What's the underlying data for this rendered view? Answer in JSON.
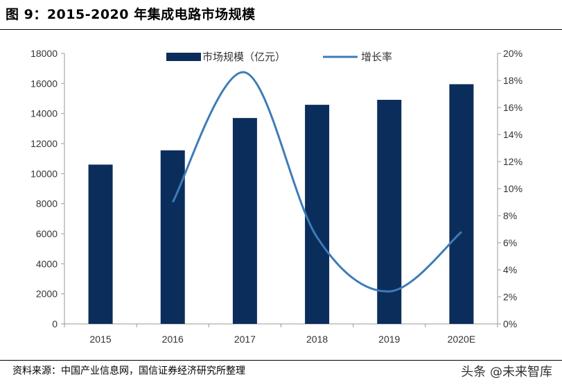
{
  "header": {
    "title": "图 9：2015-2020 年集成电路市场规模"
  },
  "footer": {
    "source": "资料来源：中国产业信息网，国信证券经济研究所整理",
    "watermark": "头条 @未来智库"
  },
  "colors": {
    "bar": "#0b2d5b",
    "line": "#3d7bb8",
    "axis": "#999999"
  },
  "chart_data": {
    "type": "bar",
    "categories": [
      "2015",
      "2016",
      "2017",
      "2018",
      "2019",
      "2020E"
    ],
    "series": [
      {
        "name": "市场规模（亿元）",
        "type": "bar",
        "axis": "left",
        "values": [
          10600,
          11550,
          13700,
          14580,
          14910,
          15950
        ]
      },
      {
        "name": "增长率",
        "type": "line",
        "axis": "right",
        "smooth": true,
        "values": [
          null,
          9.0,
          18.6,
          6.4,
          2.4,
          6.8
        ]
      }
    ],
    "ylim": [
      0,
      18000
    ],
    "yticks": [
      "0",
      "2000",
      "4000",
      "6000",
      "8000",
      "10000",
      "12000",
      "14000",
      "16000",
      "18000"
    ],
    "y2lim": [
      0,
      20
    ],
    "y2ticks": [
      "0%",
      "2%",
      "4%",
      "6%",
      "8%",
      "10%",
      "12%",
      "14%",
      "16%",
      "18%",
      "20%"
    ],
    "legend_position": "top-center",
    "grid": false
  }
}
